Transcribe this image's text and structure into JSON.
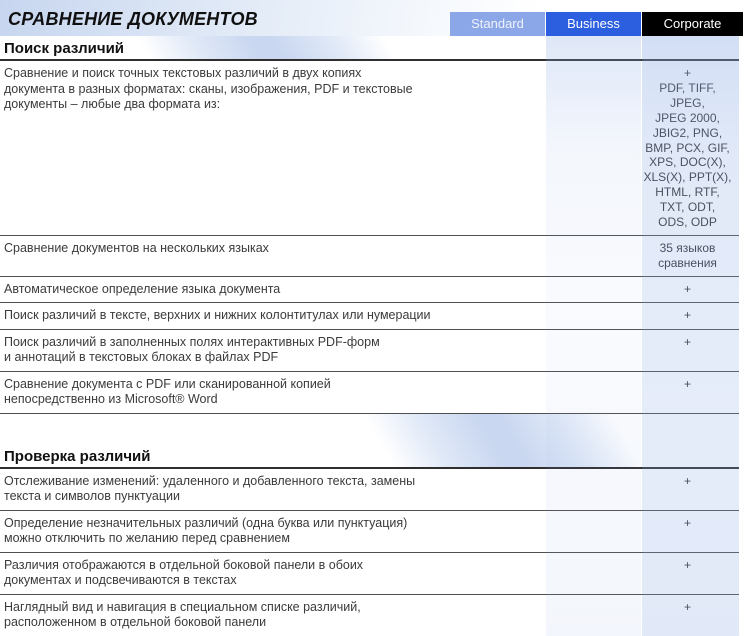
{
  "page": {
    "title": "СРАВНЕНИЕ ДОКУМЕНТОВ",
    "tabs": [
      {
        "label": "Standard",
        "color": "#8ca7e7",
        "text_color": "#eef2fb"
      },
      {
        "label": "Business",
        "color": "#2b5fe0",
        "text_color": "#ffffff"
      },
      {
        "label": "Corporate",
        "color": "#000000",
        "text_color": "#ffffff"
      }
    ],
    "colors": {
      "accent_blue": "#2b5fe0",
      "column_tint": "#8ba9e5",
      "background_beam": "#c9d7f0",
      "row_separator": "#4f4f4f",
      "heading_rule": "#2f2f2f",
      "body_text": "#3b3b3b"
    },
    "sections": [
      {
        "heading": "Поиск различий",
        "rows": [
          {
            "feature": "Сравнение и поиск точных текстовых различий в двух копиях\nдокумента в разных форматах: сканы, изображения, PDF и текстовые\nдокументы – любые два формата из:",
            "value": "+\nPDF, TIFF,\nJPEG,\nJPEG 2000,\nJBIG2, PNG,\nBMP, PCX, GIF,\nXPS, DOC(X),\nXLS(X), PPT(X),\nHTML, RTF,\nTXT, ODT,\nODS, ODP"
          },
          {
            "feature": "Сравнение документов на нескольких языках",
            "value": "35 языков\nсравнения"
          },
          {
            "feature": "Автоматическое определение языка документа",
            "value": "+"
          },
          {
            "feature": "Поиск различий в тексте, верхних и нижних колонтитулах или нумерации",
            "value": "+"
          },
          {
            "feature": "Поиск различий в заполненных полях интерактивных PDF-форм\nи аннотаций в текстовых блоках в файлах PDF",
            "value": "+"
          },
          {
            "feature": "Сравнение документа с PDF или сканированной копией\nнепосредственно из Microsoft® Word",
            "value": "+"
          }
        ]
      },
      {
        "heading": "Проверка различий",
        "rows": [
          {
            "feature": "Отслеживание изменений: удаленного и добавленного текста, замены\nтекста и символов пунктуации",
            "value": "+"
          },
          {
            "feature": "Определение незначительных различий (одна буква или пунктуация)\nможно отключить по желанию перед сравнением",
            "value": "+"
          },
          {
            "feature": "Различия отображаются в отдельной боковой панели в обоих\nдокументах и подсвечиваются в текстах",
            "value": "+"
          },
          {
            "feature": "Наглядный вид и навигация в специальном списке различий,\nрасположенном в отдельной боковой панели",
            "value": "+"
          }
        ]
      }
    ]
  }
}
